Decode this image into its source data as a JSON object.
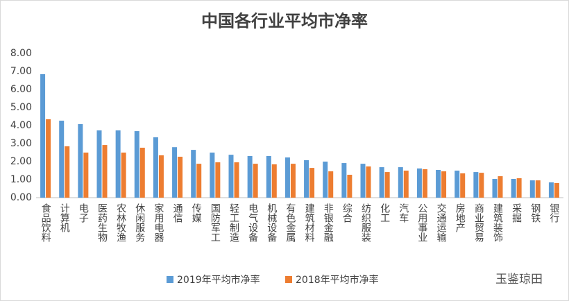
{
  "chart_data": {
    "type": "bar",
    "title": "中国各行业平均市净率",
    "categories": [
      "食品饮料",
      "计算机",
      "电子",
      "医药生物",
      "农林牧渔",
      "休闲服务",
      "家用电器",
      "通信",
      "传媒",
      "国防军工",
      "轻工制造",
      "电气设备",
      "机械设备",
      "有色金属",
      "建筑材料",
      "非银金融",
      "综合",
      "纺织服装",
      "化工",
      "汽车",
      "公用事业",
      "交通运输",
      "房地产",
      "商业贸易",
      "建筑装饰",
      "采掘",
      "钢铁",
      "银行"
    ],
    "series": [
      {
        "name": "2019年平均市净率",
        "color": "#5b9bd5",
        "values": [
          6.85,
          4.27,
          4.08,
          3.73,
          3.73,
          3.69,
          3.35,
          2.8,
          2.65,
          2.5,
          2.38,
          2.31,
          2.31,
          2.23,
          2.08,
          2.0,
          1.92,
          1.88,
          1.69,
          1.69,
          1.62,
          1.54,
          1.5,
          1.42,
          1.04,
          1.04,
          0.96,
          0.85
        ]
      },
      {
        "name": "2018年平均市净率",
        "color": "#ed7d31",
        "values": [
          4.35,
          2.85,
          2.5,
          2.92,
          2.5,
          2.77,
          2.35,
          2.27,
          1.88,
          1.96,
          1.96,
          1.88,
          1.85,
          1.88,
          1.65,
          1.46,
          1.27,
          1.73,
          1.42,
          1.5,
          1.58,
          1.46,
          1.35,
          1.38,
          1.19,
          1.08,
          0.96,
          0.81
        ]
      }
    ],
    "ylim": [
      0,
      8
    ],
    "yticks": [
      {
        "value": 0,
        "label": "0.00"
      },
      {
        "value": 1,
        "label": "1.00"
      },
      {
        "value": 2,
        "label": "2.00"
      },
      {
        "value": 3,
        "label": "3.00"
      },
      {
        "value": 4,
        "label": "4.00"
      },
      {
        "value": 5,
        "label": "5.00"
      },
      {
        "value": 6,
        "label": "6.00"
      },
      {
        "value": 7,
        "label": "7.00"
      },
      {
        "value": 8,
        "label": "8.00"
      }
    ],
    "grid": false,
    "legend": "bottom"
  },
  "watermark": "玉鉴琼田"
}
